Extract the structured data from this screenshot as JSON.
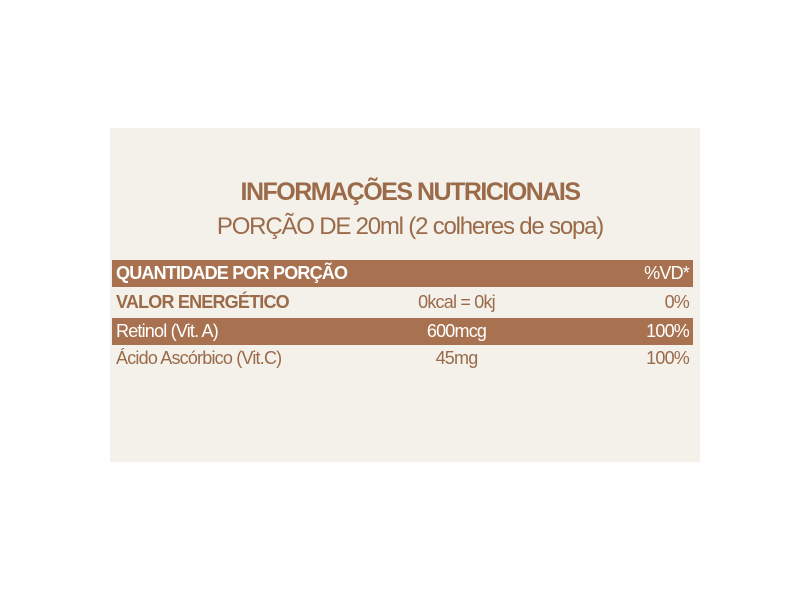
{
  "title": "INFORMAÇÕES NUTRICIONAIS",
  "subtitle": "PORÇÃO DE 20ml (2 colheres de sopa)",
  "colors": {
    "accent": "#a8714f",
    "text": "#9b6a49",
    "panel": "#f3f1ea"
  },
  "table": {
    "header": {
      "label": "QUANTIDADE POR PORÇÃO",
      "amount": "",
      "vd": "%VD*"
    },
    "rows": [
      {
        "label": "VALOR ENERGÉTICO",
        "amount": "0kcal = 0kj",
        "vd": "0%"
      },
      {
        "label": "Retinol (Vit. A)",
        "amount": "600mcg",
        "vd": "100%"
      },
      {
        "label": "Ácido Ascórbico (Vit.C)",
        "amount": "45mg",
        "vd": "100%"
      }
    ]
  }
}
